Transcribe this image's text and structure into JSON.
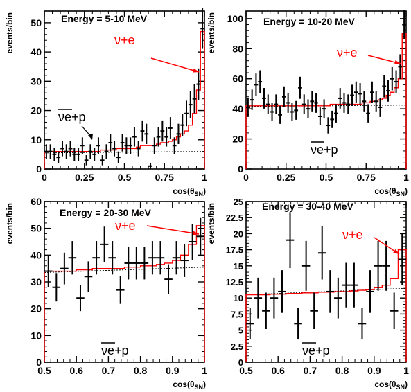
{
  "chart_data": [
    {
      "type": "scatter",
      "title": "Energy = 5-10 MeV",
      "xlabel": "cos(θSN)",
      "ylabel": "events/bin",
      "xlim": [
        0,
        1
      ],
      "ylim": [
        0,
        54
      ],
      "xticks": [
        "0",
        "0.25",
        "0.5",
        "0.75",
        "1"
      ],
      "yticks": [
        "0",
        "10",
        "20",
        "30",
        "40",
        "50"
      ],
      "annotation_nue": "ν+e",
      "annotation_nuep_bar": "ν",
      "annotation_nuep_rest": "e+p",
      "series": [
        {
          "x": [
            0.0125,
            0.0375,
            0.0625,
            0.0875,
            0.1125,
            0.1375,
            0.1625,
            0.1875,
            0.2125,
            0.2375,
            0.2625,
            0.2875,
            0.3125,
            0.3375,
            0.3625,
            0.3875,
            0.4125,
            0.4375,
            0.4625,
            0.4875,
            0.5125,
            0.5375,
            0.5625,
            0.5875,
            0.6125,
            0.6375,
            0.6625,
            0.6875,
            0.7125,
            0.7375,
            0.7625,
            0.7875,
            0.8125,
            0.8375,
            0.8625,
            0.8875,
            0.9125,
            0.9375,
            0.9625,
            0.9875
          ],
          "values": [
            6,
            6,
            5,
            4,
            7,
            6,
            7,
            5,
            5,
            8,
            3,
            6,
            5,
            8,
            3,
            6,
            9,
            7,
            4,
            9,
            8,
            8,
            11,
            7,
            13,
            12,
            1,
            8,
            11,
            13,
            11,
            14,
            8,
            12,
            15,
            19,
            22,
            24,
            29,
            48
          ]
        }
      ],
      "fit_x": [
        0.0125,
        0.0375,
        0.0625,
        0.0875,
        0.1125,
        0.1375,
        0.1625,
        0.1875,
        0.2125,
        0.2375,
        0.2625,
        0.2875,
        0.3125,
        0.3375,
        0.3625,
        0.3875,
        0.4125,
        0.4375,
        0.4625,
        0.4875,
        0.5125,
        0.5375,
        0.5625,
        0.5875,
        0.6125,
        0.6375,
        0.6625,
        0.6875,
        0.7125,
        0.7375,
        0.7625,
        0.7875,
        0.8125,
        0.8375,
        0.8625,
        0.8875,
        0.9125,
        0.9375,
        0.9625,
        0.9875
      ],
      "fit_values": [
        6,
        6,
        6,
        6,
        6,
        6,
        6,
        6,
        6,
        6,
        6,
        6,
        6,
        6,
        6.5,
        6.5,
        6.5,
        6.5,
        7,
        7,
        7,
        7,
        7,
        7.5,
        8,
        8,
        8,
        8,
        8.5,
        9,
        9,
        9.5,
        10,
        11,
        12,
        13,
        15,
        19,
        27,
        47
      ],
      "baseline": [
        5.5,
        6
      ]
    },
    {
      "type": "scatter",
      "title": "Energy = 10-20 MeV",
      "xlabel": "cos(θSN)",
      "ylabel": "events/bin",
      "xlim": [
        0,
        1
      ],
      "ylim": [
        0,
        105
      ],
      "xticks": [
        "0",
        "0.25",
        "0.5",
        "0.75",
        "1"
      ],
      "yticks": [
        "0",
        "20",
        "40",
        "60",
        "80",
        "100"
      ],
      "annotation_nue": "ν+e",
      "annotation_nuep_bar": "ν",
      "annotation_nuep_rest": "e+p",
      "series": [
        {
          "x": [
            0.0125,
            0.0375,
            0.0625,
            0.0875,
            0.1125,
            0.1375,
            0.1625,
            0.1875,
            0.2125,
            0.2375,
            0.2625,
            0.2875,
            0.3125,
            0.3375,
            0.3625,
            0.3875,
            0.4125,
            0.4375,
            0.4625,
            0.4875,
            0.5125,
            0.5375,
            0.5625,
            0.5875,
            0.6125,
            0.6375,
            0.6625,
            0.6875,
            0.7125,
            0.7375,
            0.7625,
            0.7875,
            0.8125,
            0.8375,
            0.8625,
            0.8875,
            0.9125,
            0.9375,
            0.9625,
            0.9875
          ],
          "values": [
            41,
            46,
            56,
            58,
            47,
            43,
            38,
            43,
            36,
            48,
            44,
            38,
            39,
            54,
            43,
            40,
            45,
            44,
            35,
            40,
            29,
            33,
            37,
            47,
            44,
            43,
            49,
            51,
            50,
            45,
            37,
            51,
            45,
            41,
            55,
            52,
            60,
            58,
            68,
            96
          ]
        }
      ],
      "fit_x": [
        0.0125,
        0.0375,
        0.0625,
        0.0875,
        0.1125,
        0.1375,
        0.1625,
        0.1875,
        0.2125,
        0.2375,
        0.2625,
        0.2875,
        0.3125,
        0.3375,
        0.3625,
        0.3875,
        0.4125,
        0.4375,
        0.4625,
        0.4875,
        0.5125,
        0.5375,
        0.5625,
        0.5875,
        0.6125,
        0.6375,
        0.6625,
        0.6875,
        0.7125,
        0.7375,
        0.7625,
        0.7875,
        0.8125,
        0.8375,
        0.8625,
        0.8875,
        0.9125,
        0.9375,
        0.9625,
        0.9875
      ],
      "fit_values": [
        42,
        42,
        42,
        42,
        42,
        42,
        42,
        42,
        42,
        42,
        42,
        42,
        42,
        42,
        42,
        42,
        42,
        42,
        42,
        42,
        42,
        43,
        43,
        43,
        43,
        43,
        43,
        43,
        43,
        44,
        44,
        45,
        45,
        46,
        47,
        49,
        51,
        54,
        60,
        90
      ],
      "baseline": [
        41.5,
        42.5
      ]
    },
    {
      "type": "scatter",
      "title": "Energy = 20-30 MeV",
      "xlabel": "cos(θSN)",
      "ylabel": "events/bin",
      "xlim": [
        0.5,
        1
      ],
      "ylim": [
        0,
        60
      ],
      "xticks": [
        "0.5",
        "0.6",
        "0.7",
        "0.8",
        "0.9",
        "1"
      ],
      "yticks": [
        "0",
        "10",
        "20",
        "30",
        "40",
        "50",
        "60"
      ],
      "annotation_nue": "ν+e",
      "annotation_nuep_bar": "ν",
      "annotation_nuep_rest": "e+p",
      "series": [
        {
          "x": [
            0.5125,
            0.5375,
            0.5625,
            0.5875,
            0.6125,
            0.6375,
            0.6625,
            0.6875,
            0.7125,
            0.7375,
            0.7625,
            0.7875,
            0.8125,
            0.8375,
            0.8625,
            0.8875,
            0.9125,
            0.9375,
            0.9625,
            0.9875
          ],
          "values": [
            34,
            28,
            35,
            39,
            24,
            32,
            39,
            44,
            39,
            27,
            37,
            37,
            37,
            39,
            39,
            31,
            39,
            38,
            45,
            47
          ]
        }
      ],
      "fit_x": [
        0.5125,
        0.5375,
        0.5625,
        0.5875,
        0.6125,
        0.6375,
        0.6625,
        0.6875,
        0.7125,
        0.7375,
        0.7625,
        0.7875,
        0.8125,
        0.8375,
        0.8625,
        0.8875,
        0.9125,
        0.9375,
        0.9625,
        0.9875
      ],
      "fit_values": [
        34,
        34,
        34,
        34,
        34.5,
        34.5,
        35,
        35,
        35,
        35,
        35.5,
        35.5,
        36,
        36,
        36.5,
        37,
        38,
        40,
        44,
        51
      ],
      "baseline": [
        33.5,
        35.5
      ]
    },
    {
      "type": "scatter",
      "title": "Energy = 30-40 MeV",
      "xlabel": "cos(θSN)",
      "ylabel": "events/bin",
      "xlim": [
        0.5,
        1
      ],
      "ylim": [
        0,
        25
      ],
      "xticks": [
        "0.5",
        "0.6",
        "0.7",
        "0.8",
        "0.9",
        "1"
      ],
      "yticks": [
        "0",
        "2.5",
        "5",
        "7.5",
        "10",
        "12.5",
        "15",
        "17.5",
        "20",
        "22.5",
        "25"
      ],
      "annotation_nue": "ν+e",
      "annotation_nuep_bar": "ν",
      "annotation_nuep_rest": "e+p",
      "series": [
        {
          "x": [
            0.5125,
            0.5375,
            0.5625,
            0.5875,
            0.6125,
            0.6375,
            0.6625,
            0.6875,
            0.7125,
            0.7375,
            0.7625,
            0.7875,
            0.8125,
            0.8375,
            0.8625,
            0.8875,
            0.9125,
            0.9375,
            0.9625,
            0.9875
          ],
          "values": [
            6,
            10,
            8,
            10,
            11,
            19,
            6,
            15,
            8,
            17,
            11,
            10,
            12,
            12,
            6,
            11,
            15,
            15,
            8,
            16
          ]
        }
      ],
      "fit_x": [
        0.5125,
        0.5375,
        0.5625,
        0.5875,
        0.6125,
        0.6375,
        0.6625,
        0.6875,
        0.7125,
        0.7375,
        0.7625,
        0.7875,
        0.8125,
        0.8375,
        0.8625,
        0.8875,
        0.9125,
        0.9375,
        0.9625,
        0.9875
      ],
      "fit_values": [
        10.5,
        10.5,
        10.5,
        10.6,
        10.6,
        10.7,
        10.7,
        10.8,
        10.8,
        10.9,
        10.9,
        11,
        11,
        11.1,
        11.2,
        11.3,
        11.6,
        12,
        13,
        17.5
      ],
      "baseline": [
        10.5,
        11.5
      ]
    }
  ]
}
